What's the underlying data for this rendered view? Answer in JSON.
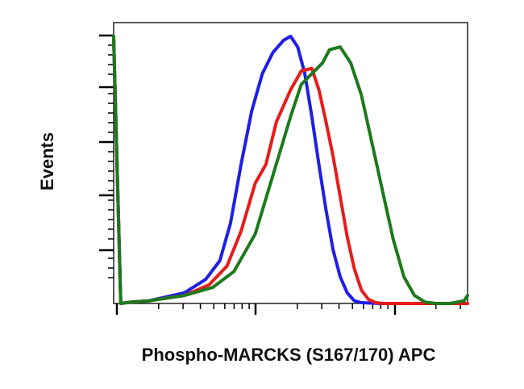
{
  "chart_data": {
    "type": "line",
    "title": "",
    "xlabel": "Phospho-MARCKS (S167/170) APC",
    "ylabel": "Events",
    "x_scale": "log",
    "xlim": [
      0,
      1
    ],
    "ylim": [
      0,
      1
    ],
    "grid": false,
    "legend": "none",
    "series": [
      {
        "color": "#1f1fe6",
        "x": [
          0.0,
          0.02,
          0.05,
          0.1,
          0.2,
          0.26,
          0.3,
          0.33,
          0.36,
          0.39,
          0.42,
          0.45,
          0.48,
          0.5,
          0.52,
          0.54,
          0.56,
          0.58,
          0.6,
          0.62,
          0.64,
          0.66,
          0.68,
          0.7,
          0.75,
          0.8,
          1.0
        ],
        "y": [
          0.995,
          0.0,
          0.005,
          0.01,
          0.04,
          0.09,
          0.16,
          0.3,
          0.52,
          0.72,
          0.86,
          0.94,
          0.985,
          1.0,
          0.96,
          0.86,
          0.7,
          0.52,
          0.35,
          0.2,
          0.1,
          0.04,
          0.01,
          0.003,
          0.0,
          0.0,
          0.0
        ]
      },
      {
        "color": "#e61c1c",
        "x": [
          0.0,
          0.02,
          0.05,
          0.1,
          0.2,
          0.27,
          0.32,
          0.36,
          0.4,
          0.43,
          0.46,
          0.5,
          0.53,
          0.56,
          0.58,
          0.6,
          0.62,
          0.64,
          0.66,
          0.68,
          0.7,
          0.72,
          0.74,
          0.76,
          0.8,
          0.85,
          1.0
        ],
        "y": [
          0.995,
          0.0,
          0.005,
          0.01,
          0.03,
          0.07,
          0.14,
          0.27,
          0.45,
          0.52,
          0.68,
          0.8,
          0.87,
          0.88,
          0.8,
          0.68,
          0.55,
          0.4,
          0.25,
          0.13,
          0.05,
          0.015,
          0.003,
          0.0,
          0.0,
          0.0,
          0.0
        ]
      },
      {
        "color": "#1c7a1c",
        "x": [
          0.0,
          0.02,
          0.05,
          0.1,
          0.2,
          0.28,
          0.34,
          0.4,
          0.45,
          0.5,
          0.53,
          0.56,
          0.59,
          0.61,
          0.64,
          0.67,
          0.7,
          0.73,
          0.76,
          0.79,
          0.82,
          0.85,
          0.88,
          0.91,
          0.95,
          0.99,
          1.0
        ],
        "y": [
          1.0,
          0.0,
          0.005,
          0.01,
          0.03,
          0.06,
          0.12,
          0.26,
          0.48,
          0.7,
          0.82,
          0.86,
          0.9,
          0.95,
          0.96,
          0.9,
          0.78,
          0.6,
          0.42,
          0.24,
          0.1,
          0.03,
          0.005,
          0.0,
          0.0,
          0.01,
          0.03
        ]
      }
    ]
  }
}
